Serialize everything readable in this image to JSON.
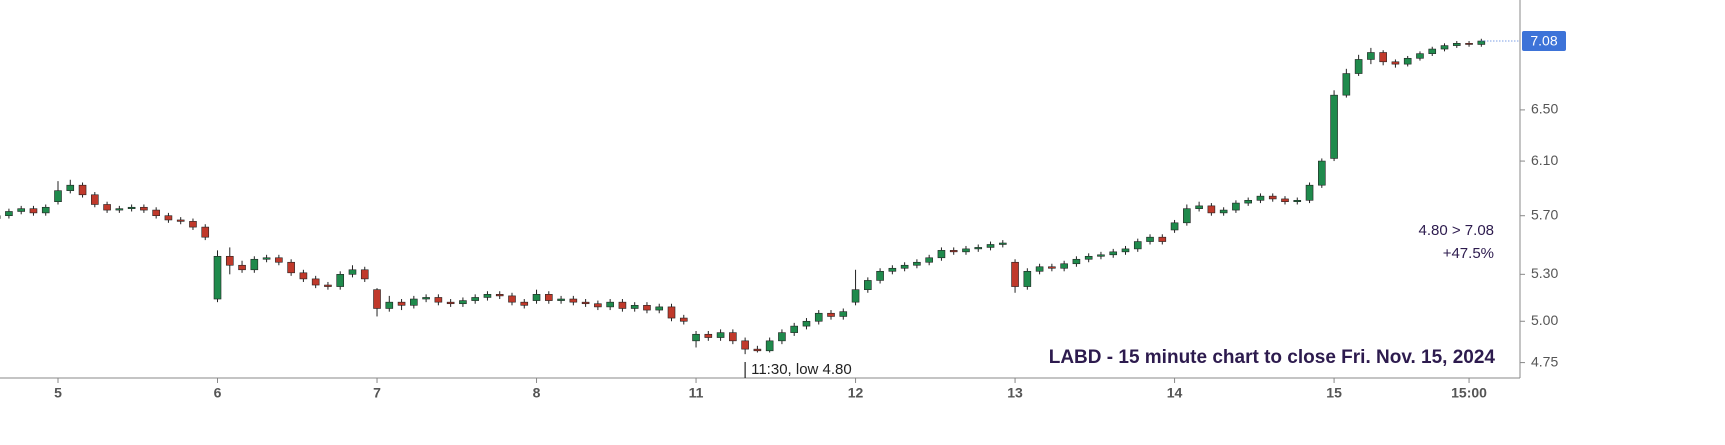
{
  "chart_data": {
    "type": "candlestick",
    "title": "LABD - 15 minute chart to close Fri. Nov. 15, 2024",
    "annotations": {
      "low_note": "11:30, low 4.80",
      "change": "4.80 > 7.08",
      "pct": "+47.5%"
    },
    "last_price": {
      "value": 7.08,
      "label": "7.08"
    },
    "log_y": true,
    "up_color": "#1f8a4c",
    "down_color": "#c0392b",
    "price_label_color": "#3d73d8",
    "ylim": [
      4.66,
      7.45
    ],
    "yticks": [
      4.75,
      {
        "value": 5,
        "label": "5.00"
      },
      {
        "value": 5.3,
        "label": "5.30"
      },
      {
        "value": 5.7,
        "label": "5.70"
      },
      {
        "value": 6.1,
        "label": "6.10"
      },
      {
        "value": 6.5,
        "label": "6.50"
      }
    ],
    "categories": [
      null,
      null,
      null,
      null,
      null,
      "5",
      null,
      null,
      null,
      null,
      null,
      null,
      null,
      null,
      null,
      null,
      null,
      null,
      "6",
      null,
      null,
      null,
      null,
      null,
      null,
      null,
      null,
      null,
      null,
      null,
      null,
      "7",
      null,
      null,
      null,
      null,
      null,
      null,
      null,
      null,
      null,
      null,
      null,
      null,
      "8",
      null,
      null,
      null,
      null,
      null,
      null,
      null,
      null,
      null,
      null,
      null,
      null,
      "11",
      null,
      null,
      null,
      null,
      null,
      null,
      null,
      null,
      null,
      null,
      null,
      null,
      "12",
      null,
      null,
      null,
      null,
      null,
      null,
      null,
      null,
      null,
      null,
      null,
      null,
      "13",
      null,
      null,
      null,
      null,
      null,
      null,
      null,
      null,
      null,
      null,
      null,
      null,
      "14",
      null,
      null,
      null,
      null,
      null,
      null,
      null,
      null,
      null,
      null,
      null,
      null,
      "15",
      null,
      null,
      null,
      null,
      null,
      null,
      null,
      null,
      null,
      null,
      "15:00",
      null
    ],
    "open": [
      5.68,
      5.7,
      5.73,
      5.75,
      5.72,
      5.8,
      5.88,
      5.92,
      5.85,
      5.78,
      5.74,
      5.75,
      5.76,
      5.74,
      5.7,
      5.67,
      5.66,
      5.62,
      5.14,
      5.42,
      5.36,
      5.33,
      5.4,
      5.41,
      5.38,
      5.31,
      5.27,
      5.23,
      5.22,
      5.3,
      5.33,
      5.2,
      5.08,
      5.12,
      5.1,
      5.14,
      5.15,
      5.12,
      5.11,
      5.13,
      5.15,
      5.17,
      5.16,
      5.12,
      5.13,
      5.17,
      5.13,
      5.14,
      5.12,
      5.11,
      5.09,
      5.12,
      5.08,
      5.1,
      5.07,
      5.09,
      5.02,
      4.88,
      4.92,
      4.9,
      4.93,
      4.88,
      4.83,
      4.82,
      4.88,
      4.93,
      4.97,
      5.0,
      5.05,
      5.03,
      5.12,
      5.2,
      5.26,
      5.32,
      5.34,
      5.36,
      5.38,
      5.41,
      5.46,
      5.45,
      5.47,
      5.48,
      5.5,
      5.38,
      5.22,
      5.32,
      5.35,
      5.34,
      5.37,
      5.4,
      5.42,
      5.43,
      5.45,
      5.47,
      5.52,
      5.55,
      5.6,
      5.65,
      5.75,
      5.77,
      5.72,
      5.74,
      5.79,
      5.81,
      5.84,
      5.82,
      5.8,
      5.81,
      5.92,
      6.12,
      6.62,
      6.8,
      6.92,
      6.98,
      6.9,
      6.88,
      6.93,
      6.97,
      7.01,
      7.04,
      7.06,
      7.05
    ],
    "high": [
      5.72,
      5.75,
      5.77,
      5.77,
      5.78,
      5.95,
      5.96,
      5.94,
      5.87,
      5.8,
      5.77,
      5.78,
      5.78,
      5.76,
      5.72,
      5.69,
      5.68,
      5.64,
      5.46,
      5.48,
      5.39,
      5.42,
      5.43,
      5.43,
      5.4,
      5.33,
      5.29,
      5.25,
      5.32,
      5.36,
      5.35,
      5.21,
      5.16,
      5.14,
      5.16,
      5.17,
      5.17,
      5.14,
      5.15,
      5.17,
      5.19,
      5.19,
      5.18,
      5.14,
      5.2,
      5.19,
      5.16,
      5.16,
      5.14,
      5.13,
      5.14,
      5.14,
      5.12,
      5.12,
      5.11,
      5.11,
      5.04,
      4.94,
      4.94,
      4.95,
      4.95,
      4.9,
      4.85,
      4.9,
      4.95,
      4.99,
      5.02,
      5.07,
      5.07,
      5.08,
      5.33,
      5.28,
      5.34,
      5.36,
      5.38,
      5.4,
      5.43,
      5.48,
      5.48,
      5.49,
      5.5,
      5.52,
      5.53,
      5.4,
      5.34,
      5.37,
      5.37,
      5.39,
      5.42,
      5.44,
      5.45,
      5.47,
      5.49,
      5.54,
      5.57,
      5.57,
      5.67,
      5.78,
      5.8,
      5.79,
      5.76,
      5.81,
      5.83,
      5.86,
      5.86,
      5.84,
      5.83,
      5.94,
      6.12,
      6.66,
      6.84,
      6.96,
      7.02,
      7.0,
      6.92,
      6.95,
      6.99,
      7.03,
      7.06,
      7.08,
      7.08,
      7.1
    ],
    "low": [
      5.66,
      5.68,
      5.71,
      5.7,
      5.7,
      5.78,
      5.86,
      5.83,
      5.76,
      5.72,
      5.72,
      5.73,
      5.72,
      5.68,
      5.65,
      5.64,
      5.6,
      5.53,
      5.12,
      5.3,
      5.31,
      5.31,
      5.38,
      5.36,
      5.29,
      5.25,
      5.21,
      5.2,
      5.2,
      5.28,
      5.25,
      5.03,
      5.06,
      5.07,
      5.08,
      5.12,
      5.1,
      5.09,
      5.09,
      5.11,
      5.13,
      5.14,
      5.1,
      5.08,
      5.11,
      5.11,
      5.11,
      5.1,
      5.09,
      5.07,
      5.07,
      5.06,
      5.06,
      5.05,
      5.05,
      5.0,
      4.98,
      4.84,
      4.88,
      4.88,
      4.86,
      4.8,
      4.81,
      4.81,
      4.86,
      4.91,
      4.95,
      4.98,
      5.01,
      5.01,
      5.1,
      5.18,
      5.24,
      5.3,
      5.32,
      5.34,
      5.36,
      5.39,
      5.43,
      5.43,
      5.45,
      5.46,
      5.48,
      5.18,
      5.2,
      5.3,
      5.32,
      5.32,
      5.35,
      5.38,
      5.4,
      5.41,
      5.43,
      5.45,
      5.5,
      5.5,
      5.58,
      5.63,
      5.73,
      5.7,
      5.7,
      5.72,
      5.77,
      5.79,
      5.8,
      5.78,
      5.78,
      5.79,
      5.9,
      6.1,
      6.6,
      6.78,
      6.88,
      6.87,
      6.85,
      6.86,
      6.91,
      6.95,
      6.99,
      7.02,
      7.03,
      7.03
    ],
    "close": [
      5.7,
      5.73,
      5.75,
      5.72,
      5.76,
      5.88,
      5.92,
      5.85,
      5.78,
      5.74,
      5.75,
      5.76,
      5.74,
      5.7,
      5.67,
      5.66,
      5.62,
      5.55,
      5.42,
      5.36,
      5.33,
      5.4,
      5.41,
      5.38,
      5.31,
      5.27,
      5.23,
      5.22,
      5.3,
      5.33,
      5.27,
      5.08,
      5.12,
      5.1,
      5.14,
      5.15,
      5.12,
      5.11,
      5.13,
      5.15,
      5.17,
      5.16,
      5.12,
      5.1,
      5.17,
      5.13,
      5.14,
      5.12,
      5.11,
      5.09,
      5.12,
      5.08,
      5.1,
      5.07,
      5.09,
      5.02,
      5.0,
      4.92,
      4.9,
      4.93,
      4.88,
      4.83,
      4.82,
      4.88,
      4.93,
      4.97,
      5.0,
      5.05,
      5.03,
      5.06,
      5.2,
      5.26,
      5.32,
      5.34,
      5.36,
      5.38,
      5.41,
      5.46,
      5.45,
      5.47,
      5.48,
      5.5,
      5.51,
      5.22,
      5.32,
      5.35,
      5.34,
      5.37,
      5.4,
      5.42,
      5.43,
      5.45,
      5.47,
      5.52,
      5.55,
      5.52,
      5.65,
      5.75,
      5.77,
      5.72,
      5.74,
      5.79,
      5.81,
      5.84,
      5.82,
      5.8,
      5.81,
      5.92,
      6.1,
      6.62,
      6.8,
      6.92,
      6.98,
      6.9,
      6.88,
      6.93,
      6.97,
      7.01,
      7.04,
      7.06,
      7.05,
      7.08
    ]
  }
}
